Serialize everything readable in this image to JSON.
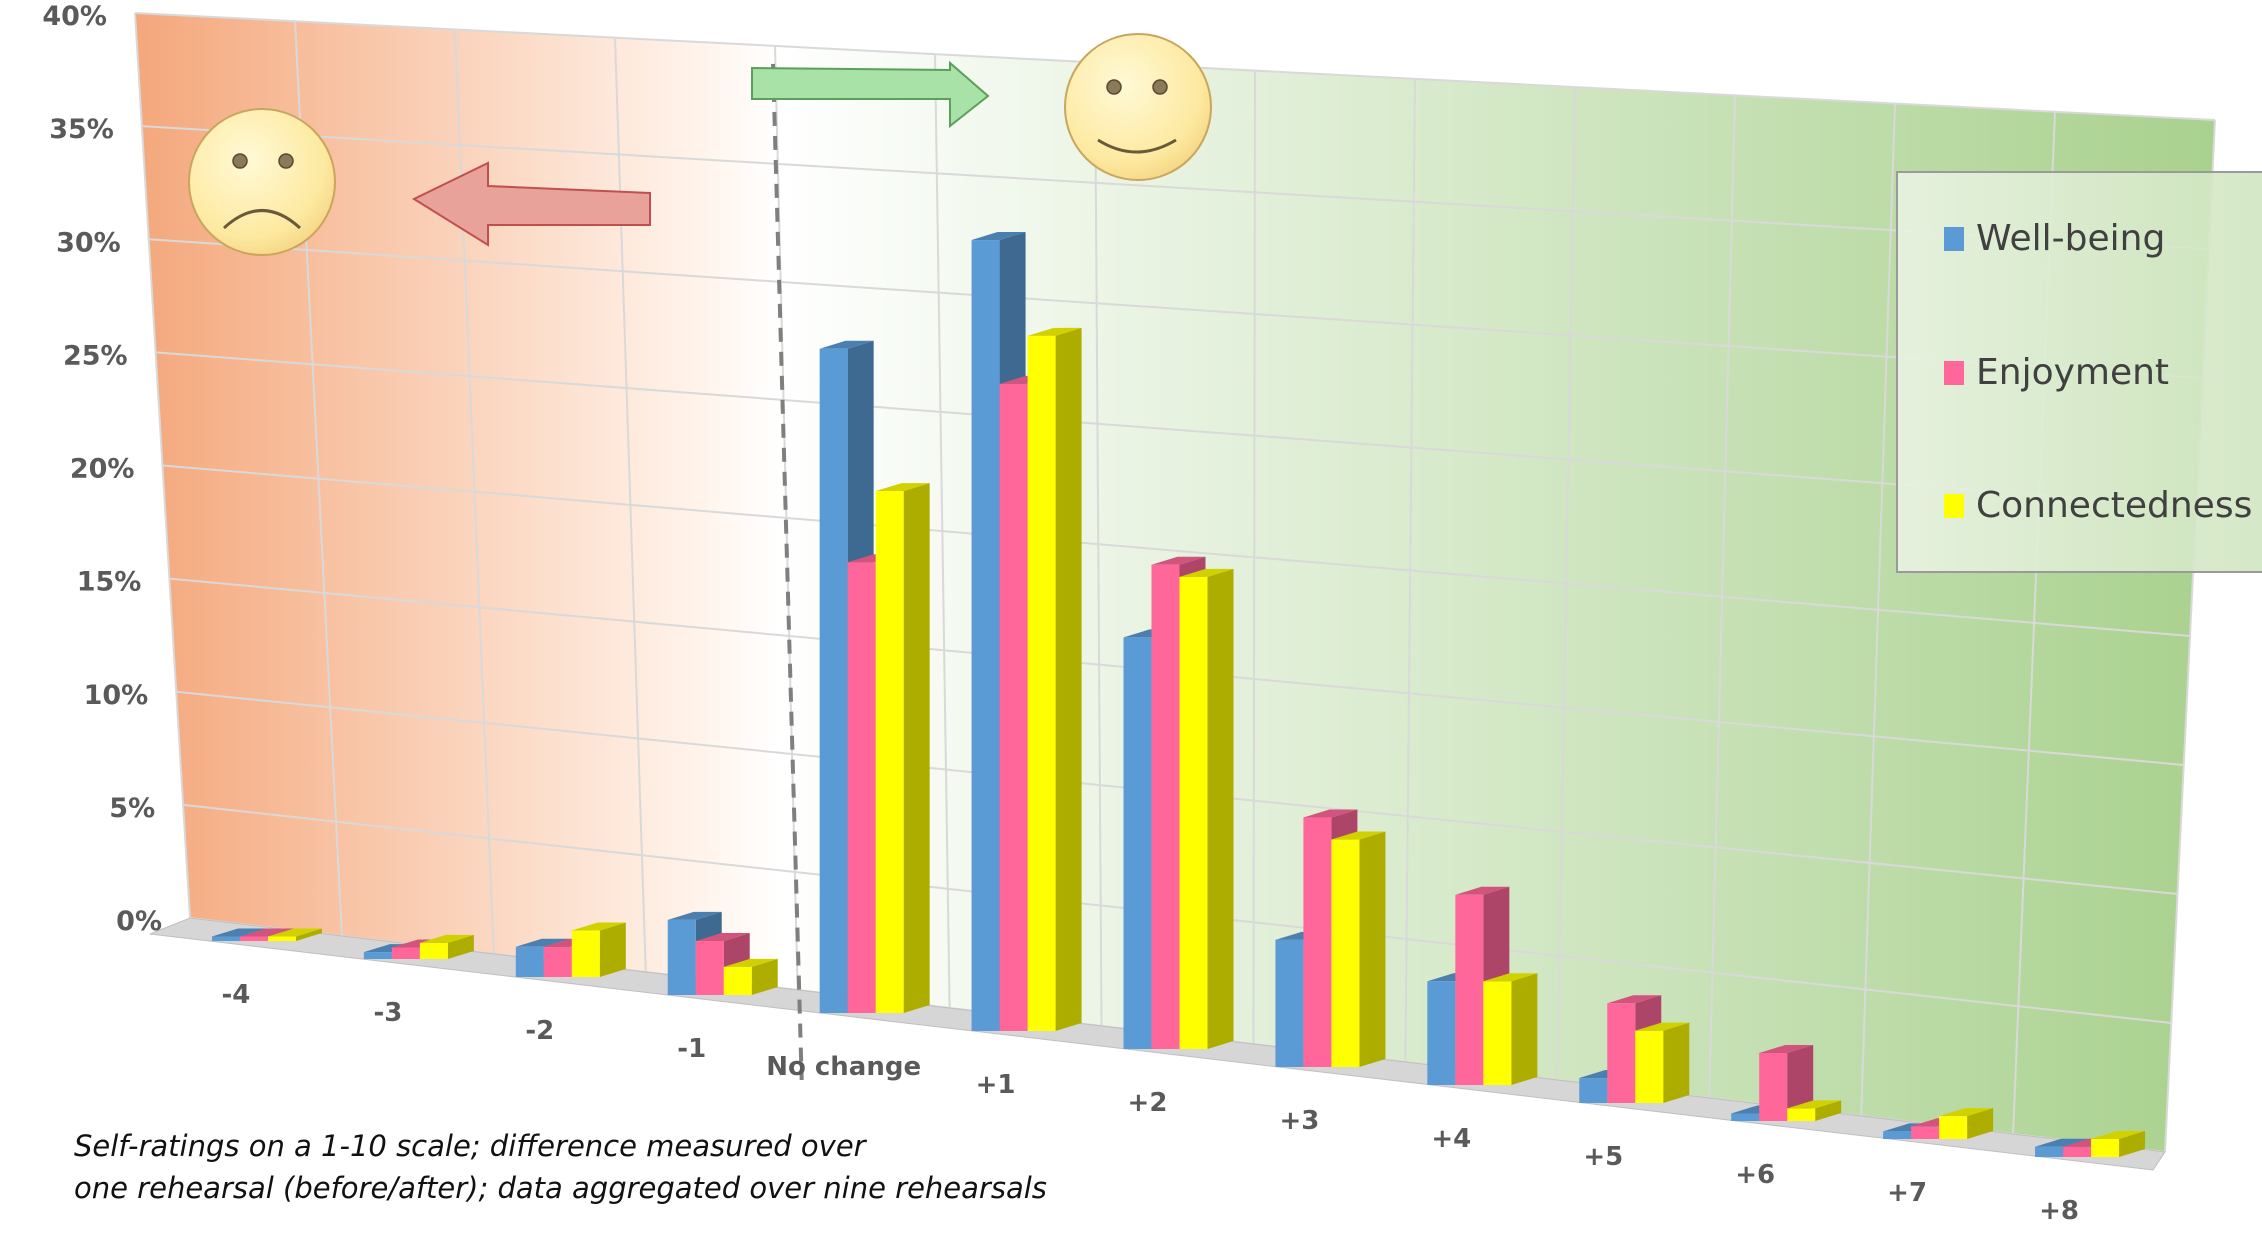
{
  "chart_data": {
    "type": "bar",
    "categories": [
      "-4",
      "-3",
      "-2",
      "-1",
      "No change",
      "+1",
      "+2",
      "+3",
      "+4",
      "+5",
      "+6",
      "+7",
      "+8"
    ],
    "series": [
      {
        "name": "Well-being",
        "color": "#5b9bd5",
        "values": [
          0.2,
          0.3,
          1.3,
          3.2,
          28,
          33,
          17,
          5.2,
          4.2,
          1.0,
          0.3,
          0.3,
          0.4
        ]
      },
      {
        "name": "Enjoyment",
        "color": "#ff6699",
        "values": [
          0.2,
          0.5,
          1.3,
          2.3,
          19,
          27,
          20,
          10.2,
          7.7,
          4.0,
          2.7,
          0.5,
          0.4
        ]
      },
      {
        "name": "Connectedness",
        "color": "#ffff00",
        "values": [
          0.2,
          0.7,
          2.0,
          1.2,
          22,
          29,
          19.5,
          9.3,
          4.2,
          2.9,
          0.5,
          0.9,
          0.7
        ]
      }
    ],
    "y_ticks": [
      "0%",
      "5%",
      "10%",
      "15%",
      "20%",
      "25%",
      "30%",
      "35%",
      "40%"
    ],
    "ylim": [
      0,
      40
    ],
    "grid": true,
    "legend_position": "right",
    "background": {
      "negative_color": "#f4a77b",
      "positive_color": "#a9d18e"
    },
    "divider": "dashed line between -1 and No change",
    "annotations": {
      "sad_face": "sad-face-icon",
      "happy_face": "happy-face-icon",
      "left_arrow": "left-arrow-icon",
      "right_arrow": "right-arrow-icon"
    }
  },
  "note": {
    "line1": "Self-ratings on a 1-10 scale; difference measured over",
    "line2": "one rehearsal (before/after); data aggregated over nine rehearsals"
  }
}
